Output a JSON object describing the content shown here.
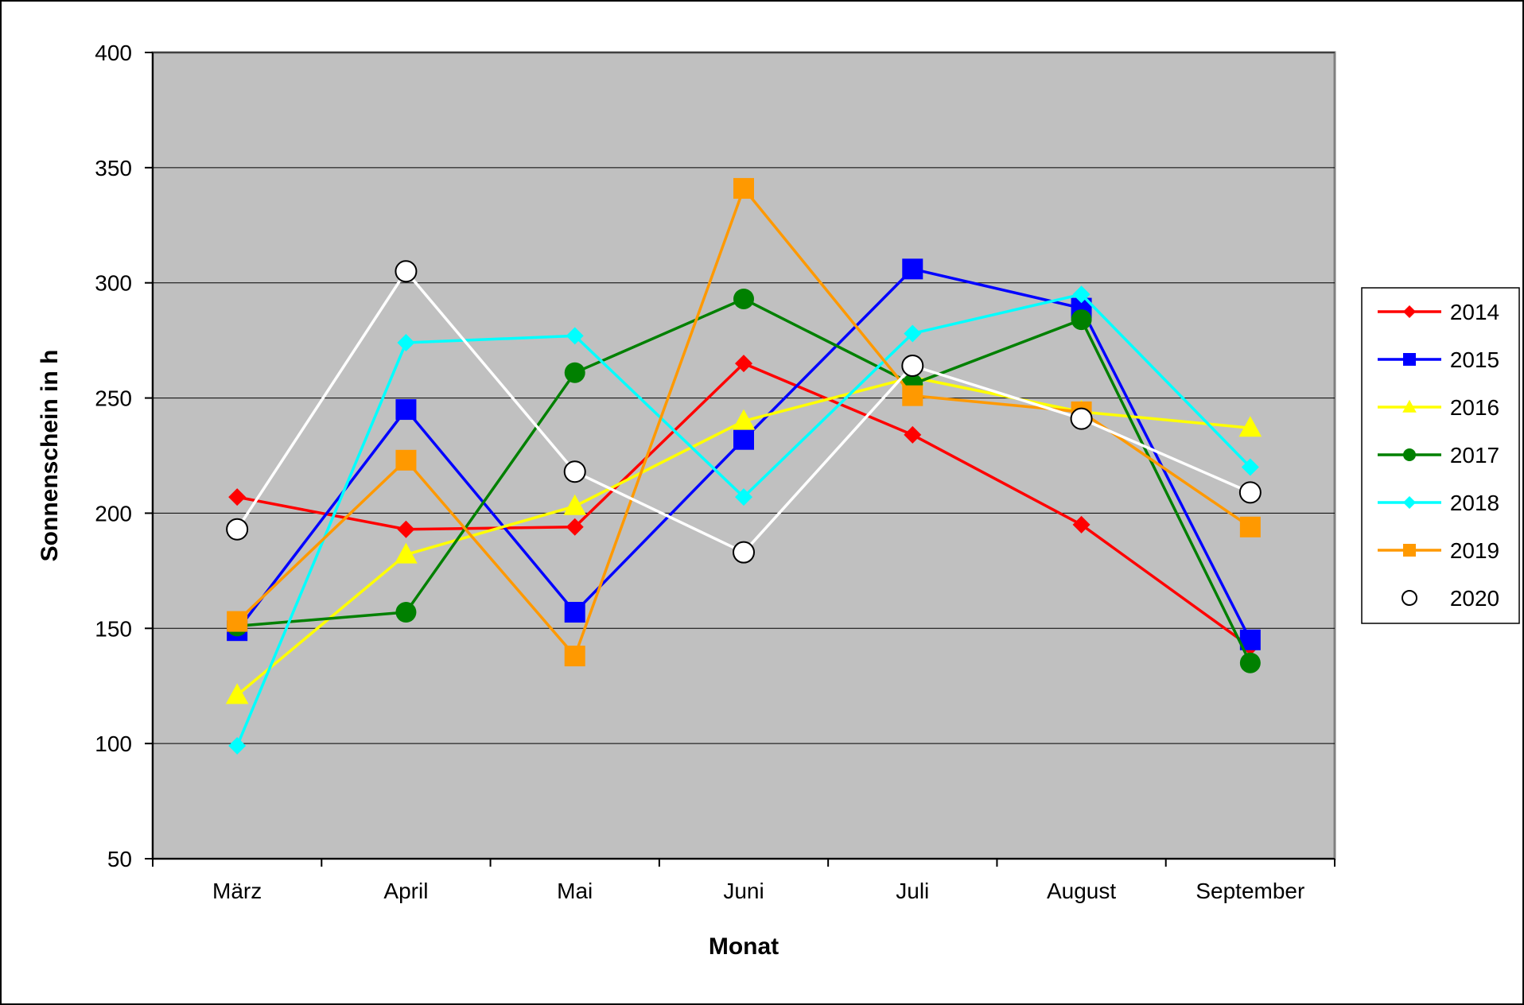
{
  "chart_data": {
    "type": "line",
    "categories": [
      "März",
      "April",
      "Mai",
      "Juni",
      "Juli",
      "August",
      "September"
    ],
    "xlabel": "Monat",
    "ylabel": "Sonnenschein in h",
    "ylim": [
      50,
      400
    ],
    "yticks": [
      50,
      100,
      150,
      200,
      250,
      300,
      350,
      400
    ],
    "grid": true,
    "legend_position": "right",
    "plot_background": "#c0c0c0",
    "series": [
      {
        "name": "2014",
        "color": "#ff0000",
        "marker": "diamond",
        "line": true,
        "values": [
          207,
          193,
          194,
          265,
          234,
          195,
          142
        ]
      },
      {
        "name": "2015",
        "color": "#0000ff",
        "marker": "square",
        "line": true,
        "values": [
          149,
          245,
          157,
          232,
          306,
          289,
          145
        ]
      },
      {
        "name": "2016",
        "color": "#ffff00",
        "marker": "triangle",
        "line": true,
        "values": [
          121,
          182,
          203,
          240,
          259,
          244,
          237
        ]
      },
      {
        "name": "2017",
        "color": "#008000",
        "marker": "circle",
        "line": true,
        "values": [
          151,
          157,
          261,
          293,
          256,
          284,
          135
        ]
      },
      {
        "name": "2018",
        "color": "#00ffff",
        "marker": "diamond",
        "line": true,
        "values": [
          99,
          274,
          277,
          207,
          278,
          295,
          220
        ]
      },
      {
        "name": "2019",
        "color": "#ff9900",
        "marker": "square",
        "line": true,
        "values": [
          153,
          223,
          138,
          341,
          251,
          244,
          194
        ]
      },
      {
        "name": "2020",
        "color": "#ffffff",
        "marker": "open-circle",
        "line": true,
        "values": [
          193,
          305,
          218,
          183,
          264,
          241,
          209
        ]
      }
    ]
  }
}
